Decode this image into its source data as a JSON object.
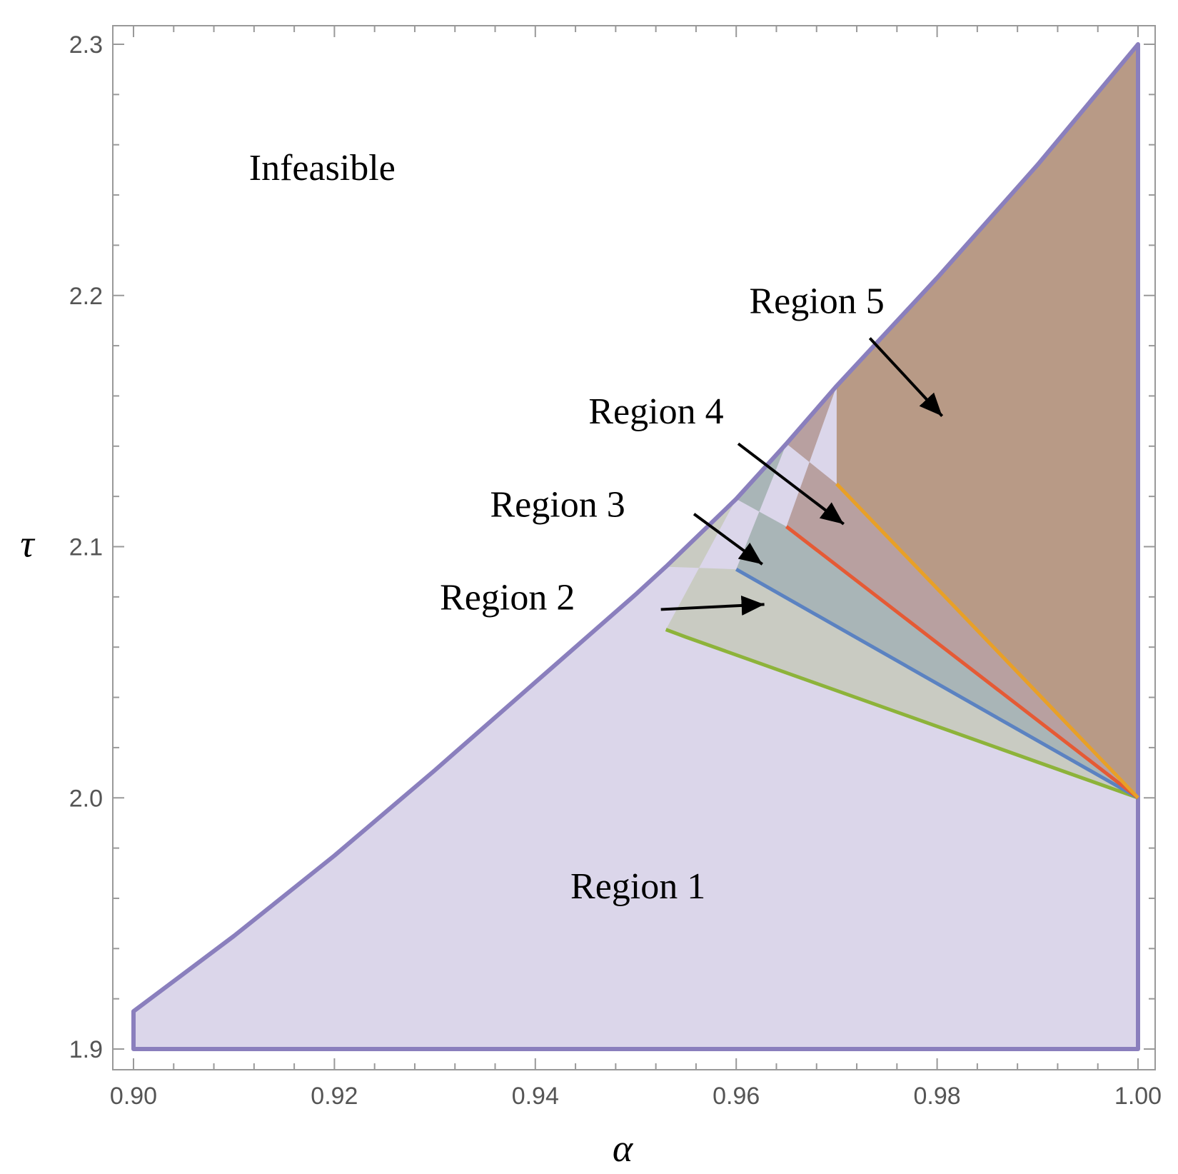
{
  "chart_data": {
    "type": "area",
    "xlabel": "α",
    "ylabel": "τ",
    "xlim": [
      0.9,
      1.0
    ],
    "ylim": [
      1.9,
      2.3
    ],
    "x_ticks": [
      "0.90",
      "0.92",
      "0.94",
      "0.96",
      "0.98",
      "1.00"
    ],
    "y_ticks": [
      "1.9",
      "2.0",
      "2.1",
      "2.2",
      "2.3"
    ],
    "grid": false,
    "colors": {
      "frame": "#999999",
      "boundary": "#8a7fbd",
      "region1_fill": "#dbd6ea",
      "region2_fill": "#c9cbc2",
      "region3_fill": "#a9b5b7",
      "region4_fill": "#b8a0a0",
      "region5_fill": "#b89a86",
      "green_line": "#8db33a",
      "blue_line": "#5b82c1",
      "red_line": "#e55a35",
      "orange_line": "#e8a027",
      "arrow": "#000000"
    },
    "feasible_boundary": {
      "x": [
        0.9,
        0.9,
        0.91,
        0.92,
        0.93,
        0.94,
        0.95,
        0.953,
        0.96,
        0.965,
        0.97,
        0.98,
        0.99,
        1.0,
        1.0
      ],
      "y": [
        1.9,
        1.915,
        1.945,
        1.977,
        2.011,
        2.046,
        2.081,
        2.092,
        2.119,
        2.141,
        2.164,
        2.207,
        2.252,
        2.3,
        1.9
      ]
    },
    "separators": [
      {
        "color_key": "green_line",
        "x": [
          0.953,
          0.955,
          1.0
        ],
        "y": [
          2.067,
          2.064,
          2.0
        ]
      },
      {
        "color_key": "blue_line",
        "x": [
          0.96,
          1.0
        ],
        "y": [
          2.091,
          2.0
        ]
      },
      {
        "color_key": "red_line",
        "x": [
          0.965,
          1.0
        ],
        "y": [
          2.108,
          2.0
        ]
      },
      {
        "color_key": "orange_line",
        "x": [
          0.97,
          1.0
        ],
        "y": [
          2.125,
          2.0
        ]
      }
    ],
    "annotations": [
      {
        "key": "infeasible",
        "text": "Infeasible",
        "x": 0.9115,
        "y": 2.246,
        "arrow": null
      },
      {
        "key": "region1",
        "text": "Region 1",
        "x": 0.9435,
        "y": 1.96,
        "arrow": null
      },
      {
        "key": "region2",
        "text": "Region 2",
        "x": 0.9305,
        "y": 2.075,
        "arrow": {
          "from": [
            0.9525,
            2.075
          ],
          "to": [
            0.9628,
            2.077
          ]
        }
      },
      {
        "key": "region3",
        "text": "Region 3",
        "x": 0.9355,
        "y": 2.112,
        "arrow": {
          "from": [
            0.9558,
            2.113
          ],
          "to": [
            0.9626,
            2.093
          ]
        }
      },
      {
        "key": "region4",
        "text": "Region 4",
        "x": 0.9453,
        "y": 2.149,
        "arrow": {
          "from": [
            0.9602,
            2.141
          ],
          "to": [
            0.9707,
            2.109
          ]
        }
      },
      {
        "key": "region5",
        "text": "Region 5",
        "x": 0.9613,
        "y": 2.193,
        "arrow": {
          "from": [
            0.9733,
            2.183
          ],
          "to": [
            0.9805,
            2.152
          ]
        }
      }
    ]
  }
}
